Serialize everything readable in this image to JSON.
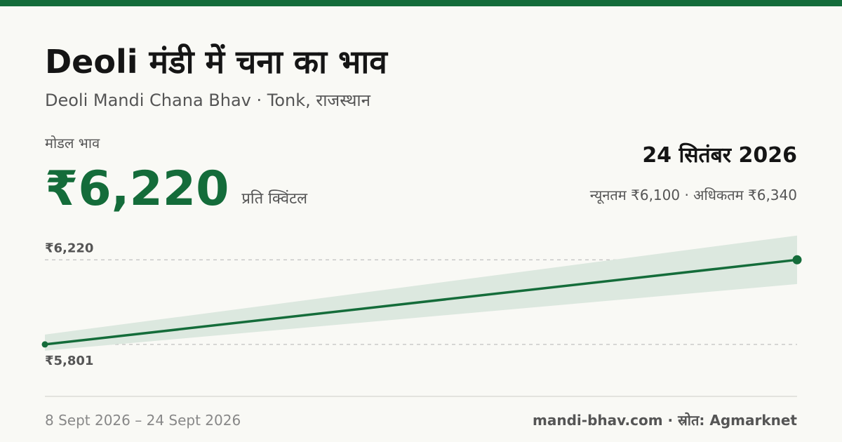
{
  "header": {
    "title": "Deoli मंडी में चना का भाव",
    "subtitle": "Deoli Mandi Chana Bhav · Tonk, राजस्थान"
  },
  "price": {
    "label": "मोडल भाव",
    "value": "₹6,220",
    "unit": "प्रति क्विंटल",
    "date": "24 सितंबर 2026",
    "range": "न्यूनतम ₹6,100 · अधिकतम ₹6,340"
  },
  "chart_data": {
    "type": "line",
    "values": [
      5801,
      6220
    ],
    "band_low": [
      5770,
      6100
    ],
    "band_high": [
      5850,
      6340
    ],
    "color": "#146c3a",
    "band_color": "#dce8df",
    "ylim": [
      5700,
      6360
    ],
    "yticks": [
      {
        "value": 5801,
        "label": "₹5,801"
      },
      {
        "value": 6220,
        "label": "₹6,220"
      }
    ],
    "grid": true
  },
  "footer": {
    "date_range": "8 Sept 2026 – 24 Sept 2026",
    "source": "mandi-bhav.com · स्रोत: Agmarknet"
  }
}
